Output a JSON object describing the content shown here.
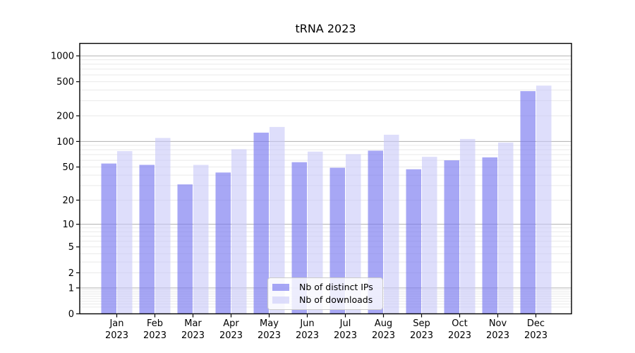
{
  "chart_data": {
    "type": "bar",
    "title": "tRNA 2023",
    "y_scale": "log10(1+x)",
    "grid": true,
    "legend_position": "lower center",
    "categories": [
      "Jan 2023",
      "Feb 2023",
      "Mar 2023",
      "Apr 2023",
      "May 2023",
      "Jun 2023",
      "Jul 2023",
      "Aug 2023",
      "Sep 2023",
      "Oct 2023",
      "Nov 2023",
      "Dec 2023"
    ],
    "series": [
      {
        "name": "Nb of distinct IPs",
        "color": "#7878f0",
        "fill_alpha": 0.65,
        "values": [
          55,
          53,
          31,
          43,
          127,
          57,
          49,
          78,
          47,
          60,
          65,
          388
        ]
      },
      {
        "name": "Nb of downloads",
        "color": "#c8c8f8",
        "fill_alpha": 0.6,
        "values": [
          77,
          110,
          53,
          81,
          148,
          76,
          71,
          120,
          66,
          107,
          97,
          450
        ]
      }
    ],
    "y_ticks": [
      0,
      1,
      2,
      5,
      10,
      20,
      50,
      100,
      200,
      500,
      1000
    ],
    "y_major_gridlines": [
      1,
      10,
      100,
      1000
    ],
    "ylim": [
      0,
      1395
    ],
    "xlabel": "",
    "ylabel": ""
  },
  "colors": {
    "major_grid": "#b0b0b0",
    "minor_grid": "#e9e9e9",
    "axis": "#000000",
    "legend_border": "#cbcbcb"
  }
}
